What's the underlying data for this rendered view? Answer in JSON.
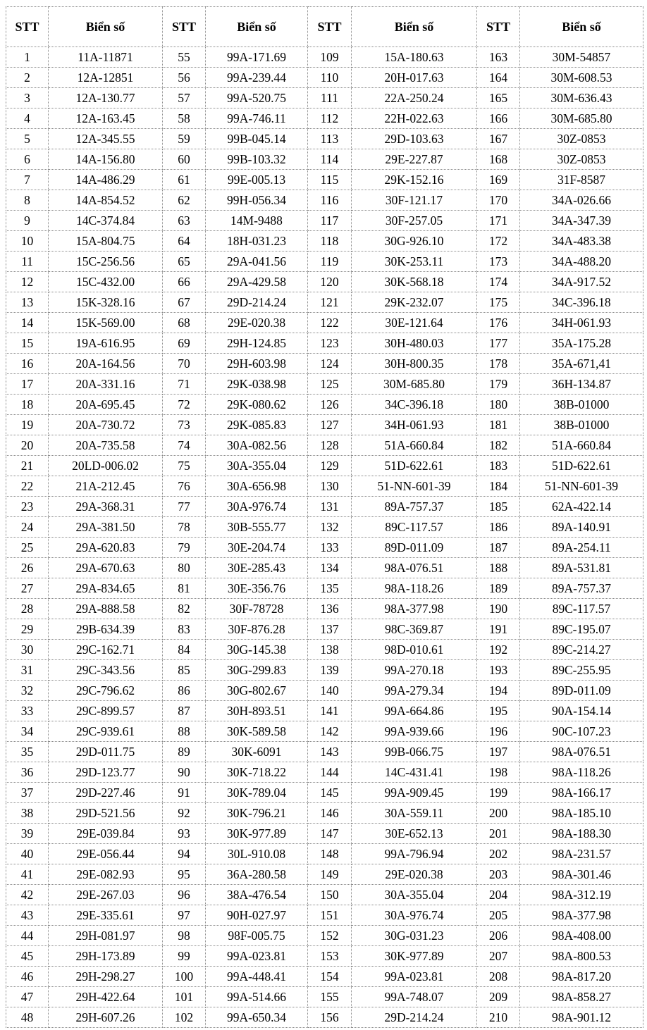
{
  "headers": [
    "STT",
    "Biển số",
    "STT",
    "Biển số",
    "STT",
    "Biển số",
    "STT",
    "Biển số"
  ],
  "rows": [
    [
      "1",
      "11A-11871",
      "55",
      "99A-171.69",
      "109",
      "15A-180.63",
      "163",
      "30M-54857"
    ],
    [
      "2",
      "12A-12851",
      "56",
      "99A-239.44",
      "110",
      "20H-017.63",
      "164",
      "30M-608.53"
    ],
    [
      "3",
      "12A-130.77",
      "57",
      "99A-520.75",
      "111",
      "22A-250.24",
      "165",
      "30M-636.43"
    ],
    [
      "4",
      "12A-163.45",
      "58",
      "99A-746.11",
      "112",
      "22H-022.63",
      "166",
      "30M-685.80"
    ],
    [
      "5",
      "12A-345.55",
      "59",
      "99B-045.14",
      "113",
      "29D-103.63",
      "167",
      "30Z-0853"
    ],
    [
      "6",
      "14A-156.80",
      "60",
      "99B-103.32",
      "114",
      "29E-227.87",
      "168",
      "30Z-0853"
    ],
    [
      "7",
      "14A-486.29",
      "61",
      "99E-005.13",
      "115",
      "29K-152.16",
      "169",
      "31F-8587"
    ],
    [
      "8",
      "14A-854.52",
      "62",
      "99H-056.34",
      "116",
      "30F-121.17",
      "170",
      "34A-026.66"
    ],
    [
      "9",
      "14C-374.84",
      "63",
      "14M-9488",
      "117",
      "30F-257.05",
      "171",
      "34A-347.39"
    ],
    [
      "10",
      "15A-804.75",
      "64",
      "18H-031.23",
      "118",
      "30G-926.10",
      "172",
      "34A-483.38"
    ],
    [
      "11",
      "15C-256.56",
      "65",
      "29A-041.56",
      "119",
      "30K-253.11",
      "173",
      "34A-488.20"
    ],
    [
      "12",
      "15C-432.00",
      "66",
      "29A-429.58",
      "120",
      "30K-568.18",
      "174",
      "34A-917.52"
    ],
    [
      "13",
      "15K-328.16",
      "67",
      "29D-214.24",
      "121",
      "29K-232.07",
      "175",
      "34C-396.18"
    ],
    [
      "14",
      "15K-569.00",
      "68",
      "29E-020.38",
      "122",
      "30E-121.64",
      "176",
      "34H-061.93"
    ],
    [
      "15",
      "19A-616.95",
      "69",
      "29H-124.85",
      "123",
      "30H-480.03",
      "177",
      "35A-175.28"
    ],
    [
      "16",
      "20A-164.56",
      "70",
      "29H-603.98",
      "124",
      "30H-800.35",
      "178",
      "35A-671,41"
    ],
    [
      "17",
      "20A-331.16",
      "71",
      "29K-038.98",
      "125",
      "30M-685.80",
      "179",
      "36H-134.87"
    ],
    [
      "18",
      "20A-695.45",
      "72",
      "29K-080.62",
      "126",
      "34C-396.18",
      "180",
      "38B-01000"
    ],
    [
      "19",
      "20A-730.72",
      "73",
      "29K-085.83",
      "127",
      "34H-061.93",
      "181",
      "38B-01000"
    ],
    [
      "20",
      "20A-735.58",
      "74",
      "30A-082.56",
      "128",
      "51A-660.84",
      "182",
      "51A-660.84"
    ],
    [
      "21",
      "20LD-006.02",
      "75",
      "30A-355.04",
      "129",
      "51D-622.61",
      "183",
      "51D-622.61"
    ],
    [
      "22",
      "21A-212.45",
      "76",
      "30A-656.98",
      "130",
      "51-NN-601-39",
      "184",
      "51-NN-601-39"
    ],
    [
      "23",
      "29A-368.31",
      "77",
      "30A-976.74",
      "131",
      "89A-757.37",
      "185",
      "62A-422.14"
    ],
    [
      "24",
      "29A-381.50",
      "78",
      "30B-555.77",
      "132",
      "89C-117.57",
      "186",
      "89A-140.91"
    ],
    [
      "25",
      "29A-620.83",
      "79",
      "30E-204.74",
      "133",
      "89D-011.09",
      "187",
      "89A-254.11"
    ],
    [
      "26",
      "29A-670.63",
      "80",
      "30E-285.43",
      "134",
      "98A-076.51",
      "188",
      "89A-531.81"
    ],
    [
      "27",
      "29A-834.65",
      "81",
      "30E-356.76",
      "135",
      "98A-118.26",
      "189",
      "89A-757.37"
    ],
    [
      "28",
      "29A-888.58",
      "82",
      "30F-78728",
      "136",
      "98A-377.98",
      "190",
      "89C-117.57"
    ],
    [
      "29",
      "29B-634.39",
      "83",
      "30F-876.28",
      "137",
      "98C-369.87",
      "191",
      "89C-195.07"
    ],
    [
      "30",
      "29C-162.71",
      "84",
      "30G-145.38",
      "138",
      "98D-010.61",
      "192",
      "89C-214.27"
    ],
    [
      "31",
      "29C-343.56",
      "85",
      "30G-299.83",
      "139",
      "99A-270.18",
      "193",
      "89C-255.95"
    ],
    [
      "32",
      "29C-796.62",
      "86",
      "30G-802.67",
      "140",
      "99A-279.34",
      "194",
      "89D-011.09"
    ],
    [
      "33",
      "29C-899.57",
      "87",
      "30H-893.51",
      "141",
      "99A-664.86",
      "195",
      "90A-154.14"
    ],
    [
      "34",
      "29C-939.61",
      "88",
      "30K-589.58",
      "142",
      "99A-939.66",
      "196",
      "90C-107.23"
    ],
    [
      "35",
      "29D-011.75",
      "89",
      "30K-6091",
      "143",
      "99B-066.75",
      "197",
      "98A-076.51"
    ],
    [
      "36",
      "29D-123.77",
      "90",
      "30K-718.22",
      "144",
      "14C-431.41",
      "198",
      "98A-118.26"
    ],
    [
      "37",
      "29D-227.46",
      "91",
      "30K-789.04",
      "145",
      "99A-909.45",
      "199",
      "98A-166.17"
    ],
    [
      "38",
      "29D-521.56",
      "92",
      "30K-796.21",
      "146",
      "30A-559.11",
      "200",
      "98A-185.10"
    ],
    [
      "39",
      "29E-039.84",
      "93",
      "30K-977.89",
      "147",
      "30E-652.13",
      "201",
      "98A-188.30"
    ],
    [
      "40",
      "29E-056.44",
      "94",
      "30L-910.08",
      "148",
      "99A-796.94",
      "202",
      "98A-231.57"
    ],
    [
      "41",
      "29E-082.93",
      "95",
      "36A-280.58",
      "149",
      "29E-020.38",
      "203",
      "98A-301.46"
    ],
    [
      "42",
      "29E-267.03",
      "96",
      "38A-476.54",
      "150",
      "30A-355.04",
      "204",
      "98A-312.19"
    ],
    [
      "43",
      "29E-335.61",
      "97",
      "90H-027.97",
      "151",
      "30A-976.74",
      "205",
      "98A-377.98"
    ],
    [
      "44",
      "29H-081.97",
      "98",
      "98F-005.75",
      "152",
      "30G-031.23",
      "206",
      "98A-408.00"
    ],
    [
      "45",
      "29H-173.89",
      "99",
      "99A-023.81",
      "153",
      "30K-977.89",
      "207",
      "98A-800.53"
    ],
    [
      "46",
      "29H-298.27",
      "100",
      "99A-448.41",
      "154",
      "99A-023.81",
      "208",
      "98A-817.20"
    ],
    [
      "47",
      "29H-422.64",
      "101",
      "99A-514.66",
      "155",
      "99A-748.07",
      "209",
      "98A-858.27"
    ],
    [
      "48",
      "29H-607.26",
      "102",
      "99A-650.34",
      "156",
      "29D-214.24",
      "210",
      "98A-901.12"
    ]
  ]
}
